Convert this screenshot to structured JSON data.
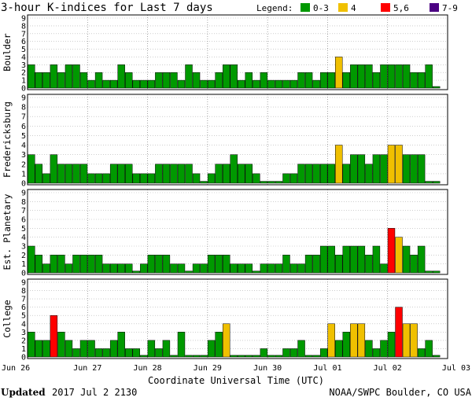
{
  "chart_data": {
    "type": "bar",
    "title": "3-hour K-indices for Last 7 days",
    "legend": {
      "title": "Legend:",
      "placement": "top-right",
      "entries": [
        {
          "label": "0-3",
          "color": "#009900"
        },
        {
          "label": "4",
          "color": "#f0c000"
        },
        {
          "label": "5,6",
          "color": "#ff0000"
        },
        {
          "label": "7-9",
          "color": "#4b0082"
        }
      ]
    },
    "xlabel": "Coordinate Universal Time (UTC)",
    "x_ticks": [
      "Jun 26",
      "Jun 27",
      "Jun 28",
      "Jun 29",
      "Jun 30",
      "Jul 01",
      "Jul 02",
      "Jul 03"
    ],
    "y_ticks": [
      "0",
      "1",
      "2",
      "3",
      "4",
      "5",
      "6",
      "7",
      "8",
      "9"
    ],
    "ylim": [
      0,
      9
    ],
    "grid": true,
    "interval_hours": 3,
    "panels": [
      {
        "name": "Boulder",
        "values": [
          3,
          2,
          2,
          3,
          2,
          3,
          3,
          2,
          1,
          2,
          1,
          1,
          3,
          2,
          1,
          1,
          1,
          2,
          2,
          2,
          1,
          3,
          2,
          1,
          1,
          2,
          3,
          3,
          1,
          2,
          1,
          2,
          1,
          1,
          1,
          1,
          2,
          2,
          1,
          2,
          2,
          4,
          2,
          3,
          3,
          3,
          2,
          3,
          3,
          3,
          3,
          2,
          2,
          3,
          0.2
        ]
      },
      {
        "name": "Fredericksburg",
        "values": [
          3,
          2,
          1,
          3,
          2,
          2,
          2,
          2,
          1,
          1,
          1,
          2,
          2,
          2,
          1,
          1,
          1,
          2,
          2,
          2,
          2,
          2,
          1,
          0.2,
          1,
          2,
          2,
          3,
          2,
          2,
          1,
          0.2,
          0.2,
          0.2,
          1,
          1,
          2,
          2,
          2,
          2,
          2,
          4,
          2,
          3,
          3,
          2,
          3,
          3,
          4,
          4,
          3,
          3,
          3,
          0.2,
          0.2
        ]
      },
      {
        "name": "Est. Planetary",
        "values": [
          3,
          2,
          1,
          2,
          2,
          1,
          2,
          2,
          2,
          2,
          1,
          1,
          1,
          1,
          0.2,
          1,
          2,
          2,
          2,
          1,
          1,
          0.2,
          1,
          1,
          2,
          2,
          2,
          1,
          1,
          1,
          0.2,
          1,
          1,
          1,
          2,
          1,
          1,
          2,
          2,
          3,
          3,
          2,
          3,
          3,
          3,
          2,
          3,
          1,
          5,
          4,
          3,
          2,
          3,
          0.2,
          0.2
        ]
      },
      {
        "name": "College",
        "values": [
          3,
          2,
          2,
          5,
          3,
          2,
          1,
          2,
          2,
          1,
          1,
          2,
          3,
          1,
          1,
          0.2,
          2,
          1,
          2,
          0.2,
          3,
          0.2,
          0.2,
          0.2,
          2,
          3,
          4,
          0.2,
          0.2,
          0.2,
          0.2,
          1,
          0.2,
          0.2,
          1,
          1,
          2,
          0.2,
          0.2,
          1,
          4,
          2,
          3,
          4,
          4,
          2,
          1,
          2,
          3,
          6,
          4,
          4,
          1,
          2,
          0.2
        ]
      }
    ]
  },
  "footer": {
    "updated_label": "Updated",
    "updated_time": "2017 Jul  2 2130",
    "source": "NOAA/SWPC Boulder, CO USA"
  }
}
